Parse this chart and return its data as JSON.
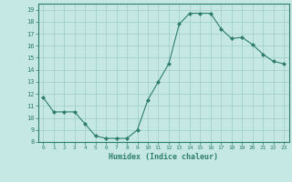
{
  "x": [
    0,
    1,
    2,
    3,
    4,
    5,
    6,
    7,
    8,
    9,
    10,
    11,
    12,
    13,
    14,
    15,
    16,
    17,
    18,
    19,
    20,
    21,
    22,
    23
  ],
  "y": [
    11.7,
    10.5,
    10.5,
    10.5,
    9.5,
    8.5,
    8.3,
    8.3,
    8.3,
    9.0,
    11.5,
    13.0,
    14.5,
    17.8,
    18.7,
    18.7,
    18.7,
    17.4,
    16.6,
    16.7,
    16.1,
    15.3,
    14.7,
    14.5
  ],
  "xlim": [
    -0.5,
    23.5
  ],
  "ylim": [
    8,
    19.5
  ],
  "yticks": [
    8,
    9,
    10,
    11,
    12,
    13,
    14,
    15,
    16,
    17,
    18,
    19
  ],
  "xticks": [
    0,
    1,
    2,
    3,
    4,
    5,
    6,
    7,
    8,
    9,
    10,
    11,
    12,
    13,
    14,
    15,
    16,
    17,
    18,
    19,
    20,
    21,
    22,
    23
  ],
  "xlabel": "Humidex (Indice chaleur)",
  "line_color": "#2e7d6e",
  "marker": "D",
  "marker_size": 2.0,
  "bg_color": "#c5e8e5",
  "grid_color": "#9eccc8",
  "spine_color": "#2e7d6e"
}
